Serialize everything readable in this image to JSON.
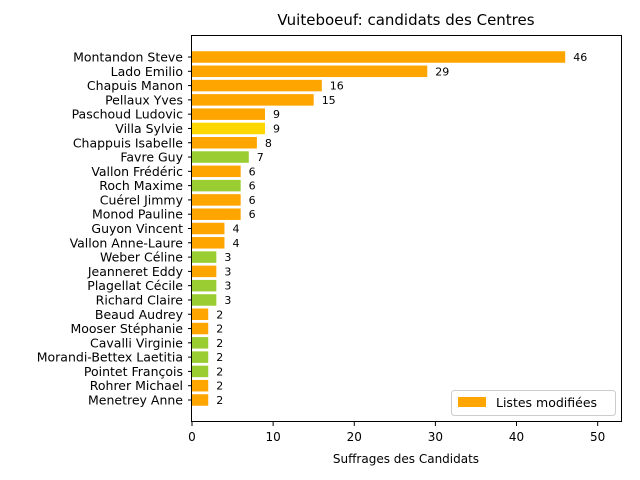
{
  "chart_data": {
    "type": "bar",
    "orientation": "horizontal",
    "title": "Vuiteboeuf: candidats des Centres",
    "xlabel": "Suffrages des Candidats",
    "ylabel": "",
    "xlim": [
      0,
      53
    ],
    "xticks": [
      0,
      10,
      20,
      30,
      40,
      50
    ],
    "xtick_labels": [
      "0",
      "10",
      "20",
      "30",
      "40",
      "50"
    ],
    "grid": false,
    "legend": {
      "position": "bottom-right",
      "entries": [
        {
          "label": "Listes modifiées",
          "color": "#FFA500"
        }
      ]
    },
    "bars": [
      {
        "label": "Montandon Steve",
        "value": 46,
        "color": "#FFA500"
      },
      {
        "label": "Lado Emilio",
        "value": 29,
        "color": "#FFA500"
      },
      {
        "label": "Chapuis Manon",
        "value": 16,
        "color": "#FFA500"
      },
      {
        "label": "Pellaux Yves",
        "value": 15,
        "color": "#FFA500"
      },
      {
        "label": "Paschoud Ludovic",
        "value": 9,
        "color": "#FFA500"
      },
      {
        "label": "Villa Sylvie",
        "value": 9,
        "color": "#FFD700"
      },
      {
        "label": "Chappuis Isabelle",
        "value": 8,
        "color": "#FFA500"
      },
      {
        "label": "Favre Guy",
        "value": 7,
        "color": "#9ACD32"
      },
      {
        "label": "Vallon Frédéric",
        "value": 6,
        "color": "#FFA500"
      },
      {
        "label": "Roch Maxime",
        "value": 6,
        "color": "#9ACD32"
      },
      {
        "label": "Cuérel Jimmy",
        "value": 6,
        "color": "#FFA500"
      },
      {
        "label": "Monod Pauline",
        "value": 6,
        "color": "#FFA500"
      },
      {
        "label": "Guyon Vincent",
        "value": 4,
        "color": "#FFA500"
      },
      {
        "label": "Vallon Anne-Laure",
        "value": 4,
        "color": "#FFA500"
      },
      {
        "label": "Weber Céline",
        "value": 3,
        "color": "#9ACD32"
      },
      {
        "label": "Jeanneret Eddy",
        "value": 3,
        "color": "#FFA500"
      },
      {
        "label": "Plagellat Cécile",
        "value": 3,
        "color": "#9ACD32"
      },
      {
        "label": "Richard Claire",
        "value": 3,
        "color": "#9ACD32"
      },
      {
        "label": "Beaud Audrey",
        "value": 2,
        "color": "#FFA500"
      },
      {
        "label": "Mooser Stéphanie",
        "value": 2,
        "color": "#FFA500"
      },
      {
        "label": "Cavalli Virginie",
        "value": 2,
        "color": "#9ACD32"
      },
      {
        "label": "Morandi-Bettex Laetitia",
        "value": 2,
        "color": "#9ACD32"
      },
      {
        "label": "Pointet François",
        "value": 2,
        "color": "#9ACD32"
      },
      {
        "label": "Rohrer Michael",
        "value": 2,
        "color": "#FFA500"
      },
      {
        "label": "Menetrey Anne",
        "value": 2,
        "color": "#FFA500"
      }
    ]
  }
}
